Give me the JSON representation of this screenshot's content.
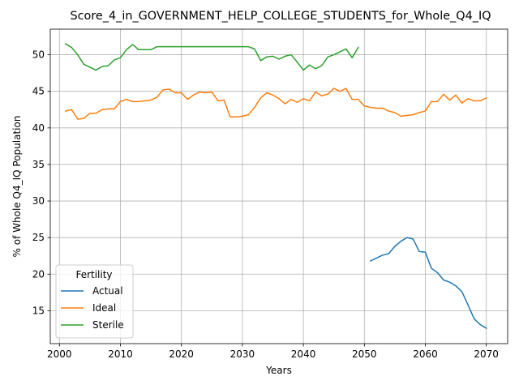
{
  "chart_data": {
    "type": "line",
    "title": "Score_4_in_GOVERNMENT_HELP_COLLEGE_STUDENTS_for_Whole_Q4_IQ",
    "xlabel": "Years",
    "ylabel": "% of Whole Q4_IQ Population",
    "xlim": [
      1998.5,
      2073.5
    ],
    "ylim": [
      10.5,
      53.5
    ],
    "xticks": [
      2000,
      2010,
      2020,
      2030,
      2040,
      2050,
      2060,
      2070
    ],
    "yticks": [
      15,
      20,
      25,
      30,
      35,
      40,
      45,
      50
    ],
    "grid": true,
    "legend": {
      "title": "Fertility",
      "placement": "lower-left"
    },
    "series": [
      {
        "name": "Actual",
        "color": "#1f77b4",
        "x": [
          2051,
          2052,
          2053,
          2054,
          2055,
          2056,
          2057,
          2058,
          2059,
          2060,
          2061,
          2062,
          2063,
          2064,
          2065,
          2066,
          2067,
          2068,
          2069,
          2070
        ],
        "y": [
          21.8,
          22.2,
          22.6,
          22.8,
          23.8,
          24.5,
          25.0,
          24.8,
          23.1,
          23.0,
          20.8,
          20.2,
          19.2,
          18.9,
          18.4,
          17.6,
          15.8,
          13.9,
          13.1,
          12.6
        ]
      },
      {
        "name": "Ideal",
        "color": "#ff7f0e",
        "x": [
          2001,
          2002,
          2003,
          2004,
          2005,
          2006,
          2007,
          2008,
          2009,
          2010,
          2011,
          2012,
          2013,
          2014,
          2015,
          2016,
          2017,
          2018,
          2019,
          2020,
          2021,
          2022,
          2023,
          2024,
          2025,
          2026,
          2027,
          2028,
          2029,
          2030,
          2031,
          2032,
          2033,
          2034,
          2035,
          2036,
          2037,
          2038,
          2039,
          2040,
          2041,
          2042,
          2043,
          2044,
          2045,
          2046,
          2047,
          2048,
          2049,
          2050,
          2051,
          2052,
          2053,
          2054,
          2055,
          2056,
          2057,
          2058,
          2059,
          2060,
          2061,
          2062,
          2063,
          2064,
          2065,
          2066,
          2067,
          2068,
          2069,
          2070
        ],
        "y": [
          42.3,
          42.5,
          41.2,
          41.3,
          42.0,
          42.0,
          42.5,
          42.6,
          42.6,
          43.6,
          43.9,
          43.6,
          43.6,
          43.7,
          43.8,
          44.2,
          45.2,
          45.3,
          44.8,
          44.8,
          43.9,
          44.5,
          44.9,
          44.8,
          44.9,
          43.7,
          43.8,
          41.5,
          41.5,
          41.6,
          41.8,
          42.8,
          44.1,
          44.8,
          44.5,
          44.0,
          43.3,
          43.9,
          43.5,
          44.0,
          43.7,
          44.9,
          44.4,
          44.6,
          45.4,
          45.0,
          45.4,
          43.9,
          43.9,
          43.0,
          42.8,
          42.7,
          42.7,
          42.3,
          42.1,
          41.6,
          41.7,
          41.8,
          42.1,
          42.3,
          43.6,
          43.6,
          44.6,
          43.8,
          44.5,
          43.4,
          44.0,
          43.7,
          43.7,
          44.1
        ]
      },
      {
        "name": "Sterile",
        "color": "#2ca02c",
        "x": [
          2001,
          2002,
          2003,
          2004,
          2005,
          2006,
          2007,
          2008,
          2009,
          2010,
          2011,
          2012,
          2013,
          2014,
          2015,
          2016,
          2017,
          2018,
          2019,
          2020,
          2021,
          2022,
          2023,
          2024,
          2025,
          2026,
          2027,
          2028,
          2029,
          2030,
          2031,
          2032,
          2033,
          2034,
          2035,
          2036,
          2037,
          2038,
          2039,
          2040,
          2041,
          2042,
          2043,
          2044,
          2045,
          2046,
          2047,
          2048,
          2049
        ],
        "y": [
          51.5,
          51.0,
          50.0,
          48.7,
          48.3,
          47.9,
          48.4,
          48.5,
          49.3,
          49.6,
          50.7,
          51.4,
          50.7,
          50.7,
          50.7,
          51.1,
          51.1,
          51.1,
          51.1,
          51.1,
          51.1,
          51.1,
          51.1,
          51.1,
          51.1,
          51.1,
          51.1,
          51.1,
          51.1,
          51.1,
          51.1,
          50.8,
          49.2,
          49.7,
          49.8,
          49.4,
          49.8,
          50.0,
          49.0,
          47.9,
          48.6,
          48.1,
          48.5,
          49.7,
          50.0,
          50.4,
          50.8,
          49.6,
          51.0
        ]
      }
    ]
  }
}
